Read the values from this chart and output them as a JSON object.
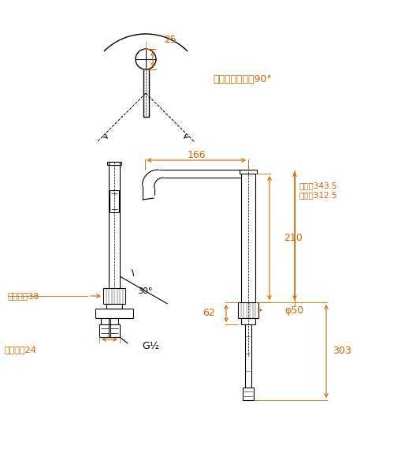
{
  "bg_color": "#ffffff",
  "line_color": "#000000",
  "dim_color": "#cc6600",
  "annotation_text": "ハンドル回転觓90°",
  "label_25": "25",
  "label_166": "166",
  "label_210": "210",
  "label_62": "62",
  "label_30": "30°",
  "label_hex38": "六觓対邂38",
  "label_hex24": "六觓対邂24",
  "label_g12": "G½",
  "label_phi50": "φ50",
  "label_full": "全開時343.5",
  "label_stop": "止水時312.5",
  "label_303": "303"
}
